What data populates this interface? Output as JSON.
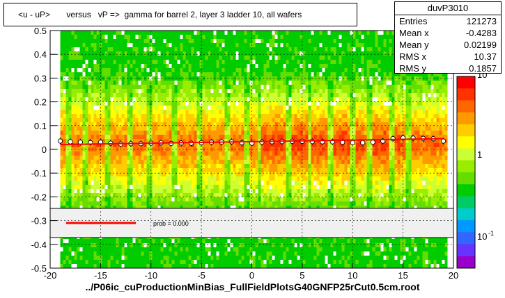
{
  "title": "<u - uP>       versus   vP =>  gamma for barrel 2, layer 3 ladder 10, all wafers",
  "footer": "../P06ic_cuProductionMinBias_FullFieldPlotsG40GNFP25rCut0.5cm.root",
  "stats": {
    "name": "duvP3010",
    "rows": [
      {
        "k": "Entries",
        "v": "121273"
      },
      {
        "k": "Mean x",
        "v": "-0.4283"
      },
      {
        "k": "Mean y",
        "v": "0.02199"
      },
      {
        "k": "RMS x",
        "v": "10.37"
      },
      {
        "k": "RMS y",
        "v": "0.1857"
      }
    ]
  },
  "legend": {
    "label": "prob = 0.000",
    "line_color": "#ff0000"
  },
  "colorbar": {
    "tick_labels": [
      "10",
      "1",
      "10"
    ],
    "superscript": "-1"
  },
  "colors": {
    "plot_bg": "#ffffff",
    "dense_band": "#ff6600",
    "fit_line": "#ff0000"
  },
  "chart_data": {
    "type": "heatmap",
    "title": "<u - uP>       versus   vP =>  gamma for barrel 2, layer 3 ladder 10, all wafers",
    "xlabel": "",
    "ylabel": "",
    "xlim": [
      -20,
      20
    ],
    "ylim": [
      -0.5,
      0.5
    ],
    "x_ticks": [
      -20,
      -15,
      -10,
      -5,
      0,
      5,
      10,
      15,
      20
    ],
    "y_ticks": [
      -0.5,
      -0.4,
      -0.3,
      -0.2,
      -0.1,
      0,
      0.1,
      0.2,
      0.3,
      0.4,
      0.5
    ],
    "grid": true,
    "profile": {
      "x": [
        -19,
        -18,
        -17,
        -16,
        -15,
        -14,
        -13,
        -12,
        -11,
        -10,
        -9,
        -8,
        -7,
        -6,
        -5,
        -4,
        -3,
        -2,
        -1,
        0,
        1,
        2,
        3,
        4,
        5,
        6,
        7,
        8,
        9,
        10,
        11,
        12,
        13,
        14,
        15,
        16,
        17,
        18,
        19
      ],
      "y": [
        0.035,
        0.032,
        0.03,
        0.028,
        0.03,
        0.026,
        0.022,
        0.024,
        0.024,
        0.026,
        0.028,
        0.025,
        0.027,
        0.026,
        0.028,
        0.03,
        0.031,
        0.032,
        0.028,
        0.026,
        0.03,
        0.032,
        0.033,
        0.034,
        0.034,
        0.033,
        0.032,
        0.032,
        0.03,
        0.028,
        0.028,
        0.03,
        0.035,
        0.045,
        0.048,
        0.047,
        0.046,
        0.045,
        0.035
      ]
    },
    "fit_line": {
      "x": [
        -19,
        19
      ],
      "y": [
        0.02,
        0.045
      ]
    }
  }
}
